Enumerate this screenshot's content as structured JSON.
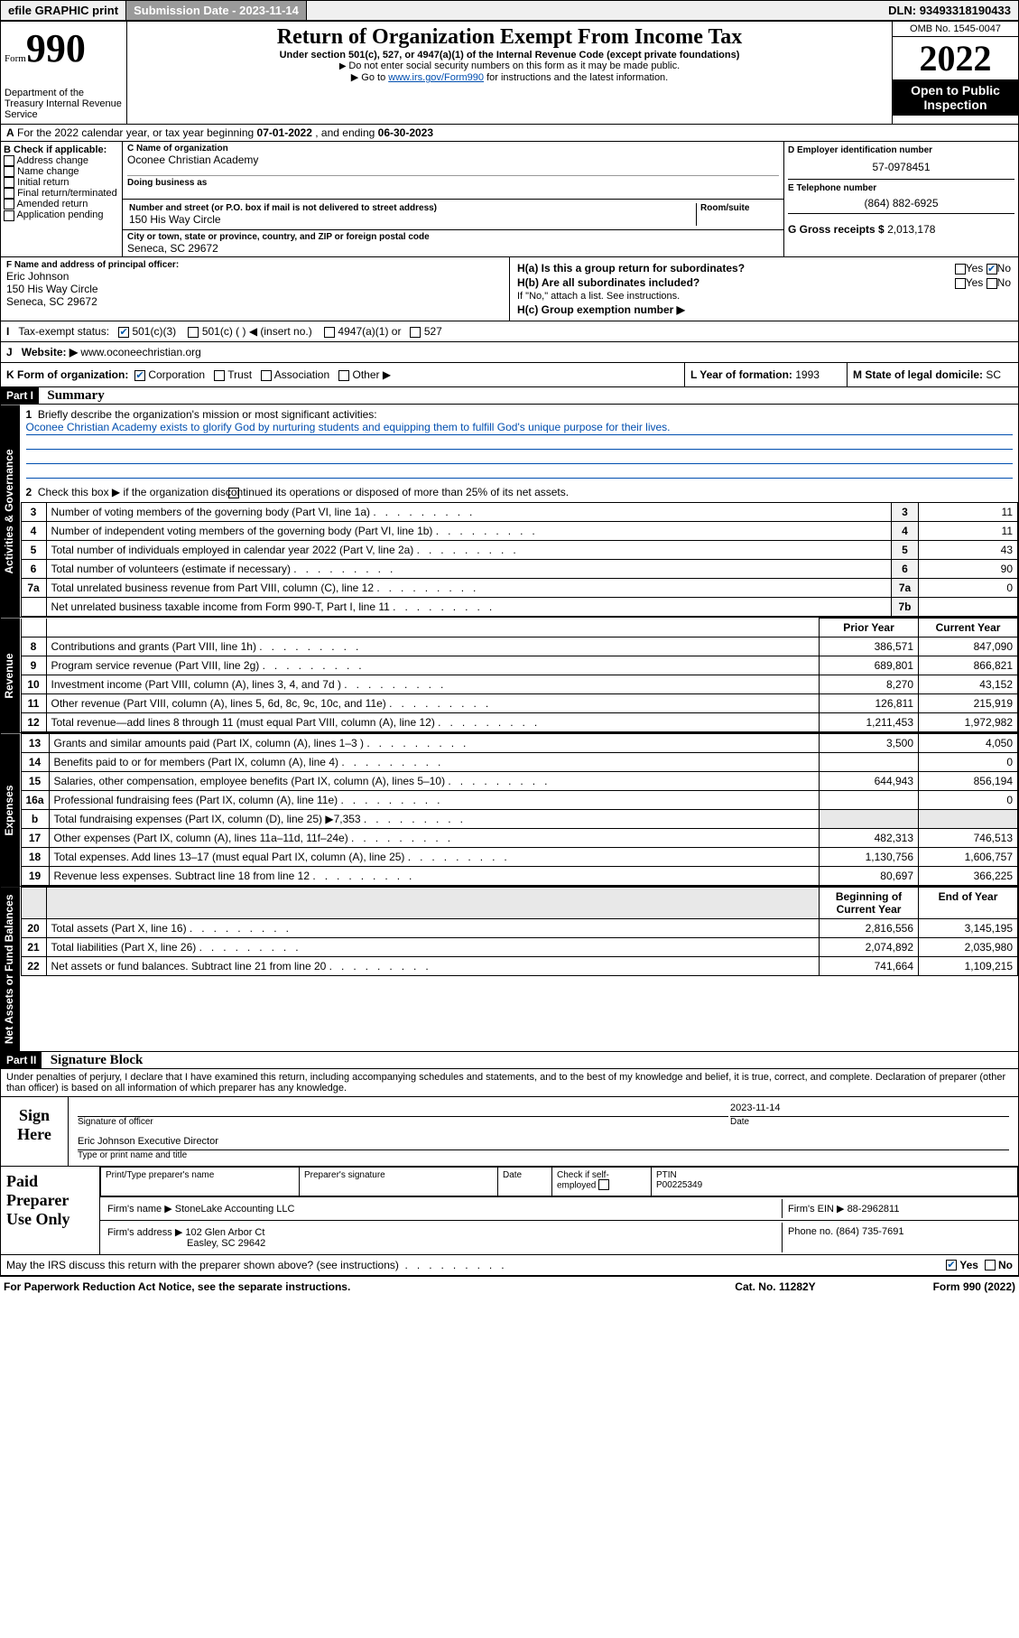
{
  "topbar": {
    "efile": "efile GRAPHIC print",
    "subdate_label": "Submission Date - ",
    "subdate": "2023-11-14",
    "dln_label": "DLN: ",
    "dln": "93493318190433"
  },
  "header": {
    "form_small": "Form",
    "form_big": "990",
    "dept": "Department of the Treasury\nInternal Revenue Service",
    "title": "Return of Organization Exempt From Income Tax",
    "sub1": "Under section 501(c), 527, or 4947(a)(1) of the Internal Revenue Code (except private foundations)",
    "sub2": "Do not enter social security numbers on this form as it may be made public.",
    "sub3a": "Go to ",
    "sub3_link": "www.irs.gov/Form990",
    "sub3b": " for instructions and the latest information.",
    "omb": "OMB No. 1545-0047",
    "year": "2022",
    "open": "Open to Public Inspection"
  },
  "A": {
    "text_a": "For the 2022 calendar year, or tax year beginning ",
    "begin": "07-01-2022",
    "mid": " , and ending ",
    "end": "06-30-2023"
  },
  "B": {
    "label": "B Check if applicable:",
    "opts": [
      "Address change",
      "Name change",
      "Initial return",
      "Final return/terminated",
      "Amended return",
      "Application pending"
    ]
  },
  "C": {
    "label": "C Name of organization",
    "name": "Oconee Christian Academy",
    "dba_label": "Doing business as",
    "addr_label": "Number and street (or P.O. box if mail is not delivered to street address)",
    "room_label": "Room/suite",
    "addr": "150 His Way Circle",
    "city_label": "City or town, state or province, country, and ZIP or foreign postal code",
    "city": "Seneca, SC  29672"
  },
  "D": {
    "label": "D Employer identification number",
    "val": "57-0978451"
  },
  "E": {
    "label": "E Telephone number",
    "val": "(864) 882-6925"
  },
  "G": {
    "label": "G Gross receipts $ ",
    "val": "2,013,178"
  },
  "F": {
    "label": "F Name and address of principal officer:",
    "name": "Eric Johnson",
    "addr1": "150 His Way Circle",
    "addr2": "Seneca, SC  29672"
  },
  "H": {
    "a_label": "H(a)  Is this a group return for subordinates?",
    "b_label": "H(b)  Are all subordinates included?",
    "b_note": "If \"No,\" attach a list. See instructions.",
    "c_label": "H(c)  Group exemption number ▶",
    "yes": "Yes",
    "no": "No"
  },
  "I": {
    "label": "Tax-exempt status:",
    "opts": [
      "501(c)(3)",
      "501(c) (  ) ◀ (insert no.)",
      "4947(a)(1) or",
      "527"
    ]
  },
  "J": {
    "label": "Website: ▶",
    "val": "www.oconeechristian.org"
  },
  "K": {
    "label": "K Form of organization:",
    "opts": [
      "Corporation",
      "Trust",
      "Association",
      "Other ▶"
    ]
  },
  "L": {
    "label": "L Year of formation: ",
    "val": "1993"
  },
  "M": {
    "label": "M State of legal domicile: ",
    "val": "SC"
  },
  "part1": {
    "hdr": "Part I",
    "title": "Summary",
    "line1_label": "Briefly describe the organization's mission or most significant activities:",
    "mission": "Oconee Christian Academy exists to glorify God by nurturing students and equipping them to fulfill God's unique purpose for their lives.",
    "line2": "Check this box ▶           if the organization discontinued its operations or disposed of more than 25% of its net assets.",
    "prior_hdr": "Prior Year",
    "curr_hdr": "Current Year",
    "begin_hdr": "Beginning of Current Year",
    "end_hdr": "End of Year",
    "governance_rows": [
      {
        "n": "3",
        "d": "Number of voting members of the governing body (Part VI, line 1a)",
        "box": "3",
        "v": "11"
      },
      {
        "n": "4",
        "d": "Number of independent voting members of the governing body (Part VI, line 1b)",
        "box": "4",
        "v": "11"
      },
      {
        "n": "5",
        "d": "Total number of individuals employed in calendar year 2022 (Part V, line 2a)",
        "box": "5",
        "v": "43"
      },
      {
        "n": "6",
        "d": "Total number of volunteers (estimate if necessary)",
        "box": "6",
        "v": "90"
      },
      {
        "n": "7a",
        "d": "Total unrelated business revenue from Part VIII, column (C), line 12",
        "box": "7a",
        "v": "0"
      },
      {
        "n": "",
        "d": "Net unrelated business taxable income from Form 990-T, Part I, line 11",
        "box": "7b",
        "v": ""
      }
    ],
    "revenue_rows": [
      {
        "n": "8",
        "d": "Contributions and grants (Part VIII, line 1h)",
        "p": "386,571",
        "c": "847,090"
      },
      {
        "n": "9",
        "d": "Program service revenue (Part VIII, line 2g)",
        "p": "689,801",
        "c": "866,821"
      },
      {
        "n": "10",
        "d": "Investment income (Part VIII, column (A), lines 3, 4, and 7d )",
        "p": "8,270",
        "c": "43,152"
      },
      {
        "n": "11",
        "d": "Other revenue (Part VIII, column (A), lines 5, 6d, 8c, 9c, 10c, and 11e)",
        "p": "126,811",
        "c": "215,919"
      },
      {
        "n": "12",
        "d": "Total revenue—add lines 8 through 11 (must equal Part VIII, column (A), line 12)",
        "p": "1,211,453",
        "c": "1,972,982"
      }
    ],
    "expense_rows": [
      {
        "n": "13",
        "d": "Grants and similar amounts paid (Part IX, column (A), lines 1–3 )",
        "p": "3,500",
        "c": "4,050"
      },
      {
        "n": "14",
        "d": "Benefits paid to or for members (Part IX, column (A), line 4)",
        "p": "",
        "c": "0"
      },
      {
        "n": "15",
        "d": "Salaries, other compensation, employee benefits (Part IX, column (A), lines 5–10)",
        "p": "644,943",
        "c": "856,194"
      },
      {
        "n": "16a",
        "d": "Professional fundraising fees (Part IX, column (A), line 11e)",
        "p": "",
        "c": "0"
      },
      {
        "n": "b",
        "d": "Total fundraising expenses (Part IX, column (D), line 25) ▶7,353",
        "p": "GRAY",
        "c": "GRAY"
      },
      {
        "n": "17",
        "d": "Other expenses (Part IX, column (A), lines 11a–11d, 11f–24e)",
        "p": "482,313",
        "c": "746,513"
      },
      {
        "n": "18",
        "d": "Total expenses. Add lines 13–17 (must equal Part IX, column (A), line 25)",
        "p": "1,130,756",
        "c": "1,606,757"
      },
      {
        "n": "19",
        "d": "Revenue less expenses. Subtract line 18 from line 12",
        "p": "80,697",
        "c": "366,225"
      }
    ],
    "net_rows": [
      {
        "n": "20",
        "d": "Total assets (Part X, line 16)",
        "p": "2,816,556",
        "c": "3,145,195"
      },
      {
        "n": "21",
        "d": "Total liabilities (Part X, line 26)",
        "p": "2,074,892",
        "c": "2,035,980"
      },
      {
        "n": "22",
        "d": "Net assets or fund balances. Subtract line 21 from line 20",
        "p": "741,664",
        "c": "1,109,215"
      }
    ]
  },
  "part2": {
    "hdr": "Part II",
    "title": "Signature Block",
    "decl": "Under penalties of perjury, I declare that I have examined this return, including accompanying schedules and statements, and to the best of my knowledge and belief, it is true, correct, and complete. Declaration of preparer (other than officer) is based on all information of which preparer has any knowledge.",
    "sign_here": "Sign Here",
    "sig_officer": "Signature of officer",
    "sig_date": "Date",
    "sig_date_val": "2023-11-14",
    "officer_name": "Eric Johnson  Executive Director",
    "type_name": "Type or print name and title",
    "paid": "Paid Preparer Use Only",
    "prep_name_hdr": "Print/Type preparer's name",
    "prep_sig_hdr": "Preparer's signature",
    "date_hdr": "Date",
    "check_if": "Check          if self-employed",
    "ptin_hdr": "PTIN",
    "ptin": "P00225349",
    "firm_name_lbl": "Firm's name      ▶ ",
    "firm_name": "StoneLake Accounting LLC",
    "firm_ein_lbl": "Firm's EIN ▶ ",
    "firm_ein": "88-2962811",
    "firm_addr_lbl": "Firm's address ▶ ",
    "firm_addr1": "102 Glen Arbor Ct",
    "firm_addr2": "Easley, SC  29642",
    "phone_lbl": "Phone no. ",
    "phone": "(864) 735-7691",
    "may_irs": "May the IRS discuss this return with the preparer shown above? (see instructions)"
  },
  "footer": {
    "pra": "For Paperwork Reduction Act Notice, see the separate instructions.",
    "cat": "Cat. No. 11282Y",
    "form": "Form 990 (2022)"
  },
  "sidetabs": {
    "governance": "Activities & Governance",
    "revenue": "Revenue",
    "expenses": "Expenses",
    "net": "Net Assets or Fund Balances"
  }
}
